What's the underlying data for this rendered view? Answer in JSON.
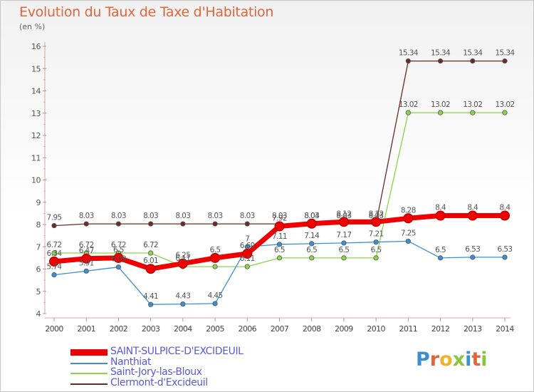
{
  "page": {
    "title": "Evolution du Taux de Taxe d'Habitation",
    "subtitle": "(en %)"
  },
  "logo": {
    "letters": [
      {
        "ch": "P",
        "color": "#3d8fd1"
      },
      {
        "ch": "r",
        "color": "#e0663c"
      },
      {
        "ch": "o",
        "color": "#f0b42a"
      },
      {
        "ch": "x",
        "color": "#8bc540"
      },
      {
        "ch": "i",
        "color": "#3d8fd1"
      },
      {
        "ch": "t",
        "color": "#e0663c"
      },
      {
        "ch": "i",
        "color": "#8bc540"
      }
    ]
  },
  "chart_data": {
    "type": "line",
    "x": [
      2000,
      2001,
      2002,
      2003,
      2004,
      2005,
      2006,
      2007,
      2008,
      2009,
      2010,
      2011,
      2012,
      2013,
      2014
    ],
    "ylim": [
      4,
      16
    ],
    "yticks": [
      4,
      5,
      6,
      7,
      8,
      9,
      10,
      11,
      12,
      13,
      14,
      15,
      16
    ],
    "grid": false,
    "legend_position": "bottom-left",
    "series": [
      {
        "name": "Clermont-d'Excideuil",
        "color": "#6b2b26",
        "values": [
          7.95,
          8.03,
          8.03,
          8.03,
          8.03,
          8.03,
          8.03,
          8.03,
          8.03,
          8.03,
          8.03,
          15.34,
          15.34,
          15.34,
          15.34
        ],
        "labels": [
          "7.95",
          "8.03",
          "8.03",
          "8.03",
          "8.03",
          "8.03",
          "8.03",
          "8.03",
          "8.03",
          "8.03",
          "8.03",
          "15.34",
          "15.34",
          "15.34",
          "15.34"
        ]
      },
      {
        "name": "Saint-Jory-las-Bloux",
        "color": "#8cd44a",
        "values": [
          6.72,
          6.72,
          6.72,
          6.72,
          6.11,
          6.11,
          6.11,
          6.5,
          6.5,
          6.5,
          6.5,
          13.02,
          13.02,
          13.02,
          13.02
        ],
        "labels": [
          "6.72",
          "6.72",
          "6.72",
          "6.72",
          "6.11",
          "",
          "6.11",
          "6.5",
          "6.5",
          "6.5",
          "6.5",
          "13.02",
          "13.02",
          "13.02",
          "13.02"
        ]
      },
      {
        "name": "Nanthiat",
        "color": "#3d8fd1",
        "values": [
          5.74,
          5.91,
          6.09,
          4.41,
          4.43,
          4.45,
          7.0,
          7.11,
          7.14,
          7.17,
          7.21,
          7.25,
          6.5,
          6.53,
          6.53
        ],
        "labels": [
          "5.74",
          "5.91",
          "6.09",
          "4.41",
          "4.43",
          "4.45",
          "7",
          "7.11",
          "7.14",
          "7.17",
          "7.21",
          "7.25",
          "6.5",
          "6.53",
          "6.53"
        ]
      },
      {
        "name": "SAINT-SULPICE-D'EXCIDEUIL",
        "color": "#ee0000",
        "values": [
          6.34,
          6.47,
          6.5,
          6.01,
          6.25,
          6.5,
          6.69,
          7.92,
          8.04,
          8.12,
          8.12,
          8.28,
          8.4,
          8.4,
          8.4
        ],
        "labels": [
          "6.34",
          "6.47",
          "6.5",
          "6.01",
          "6.25",
          "6.5",
          "6.69",
          "7.92",
          "8.04",
          "8.12",
          "8.12",
          "8.28",
          "8.4",
          "8.4",
          "8.4"
        ]
      }
    ]
  }
}
